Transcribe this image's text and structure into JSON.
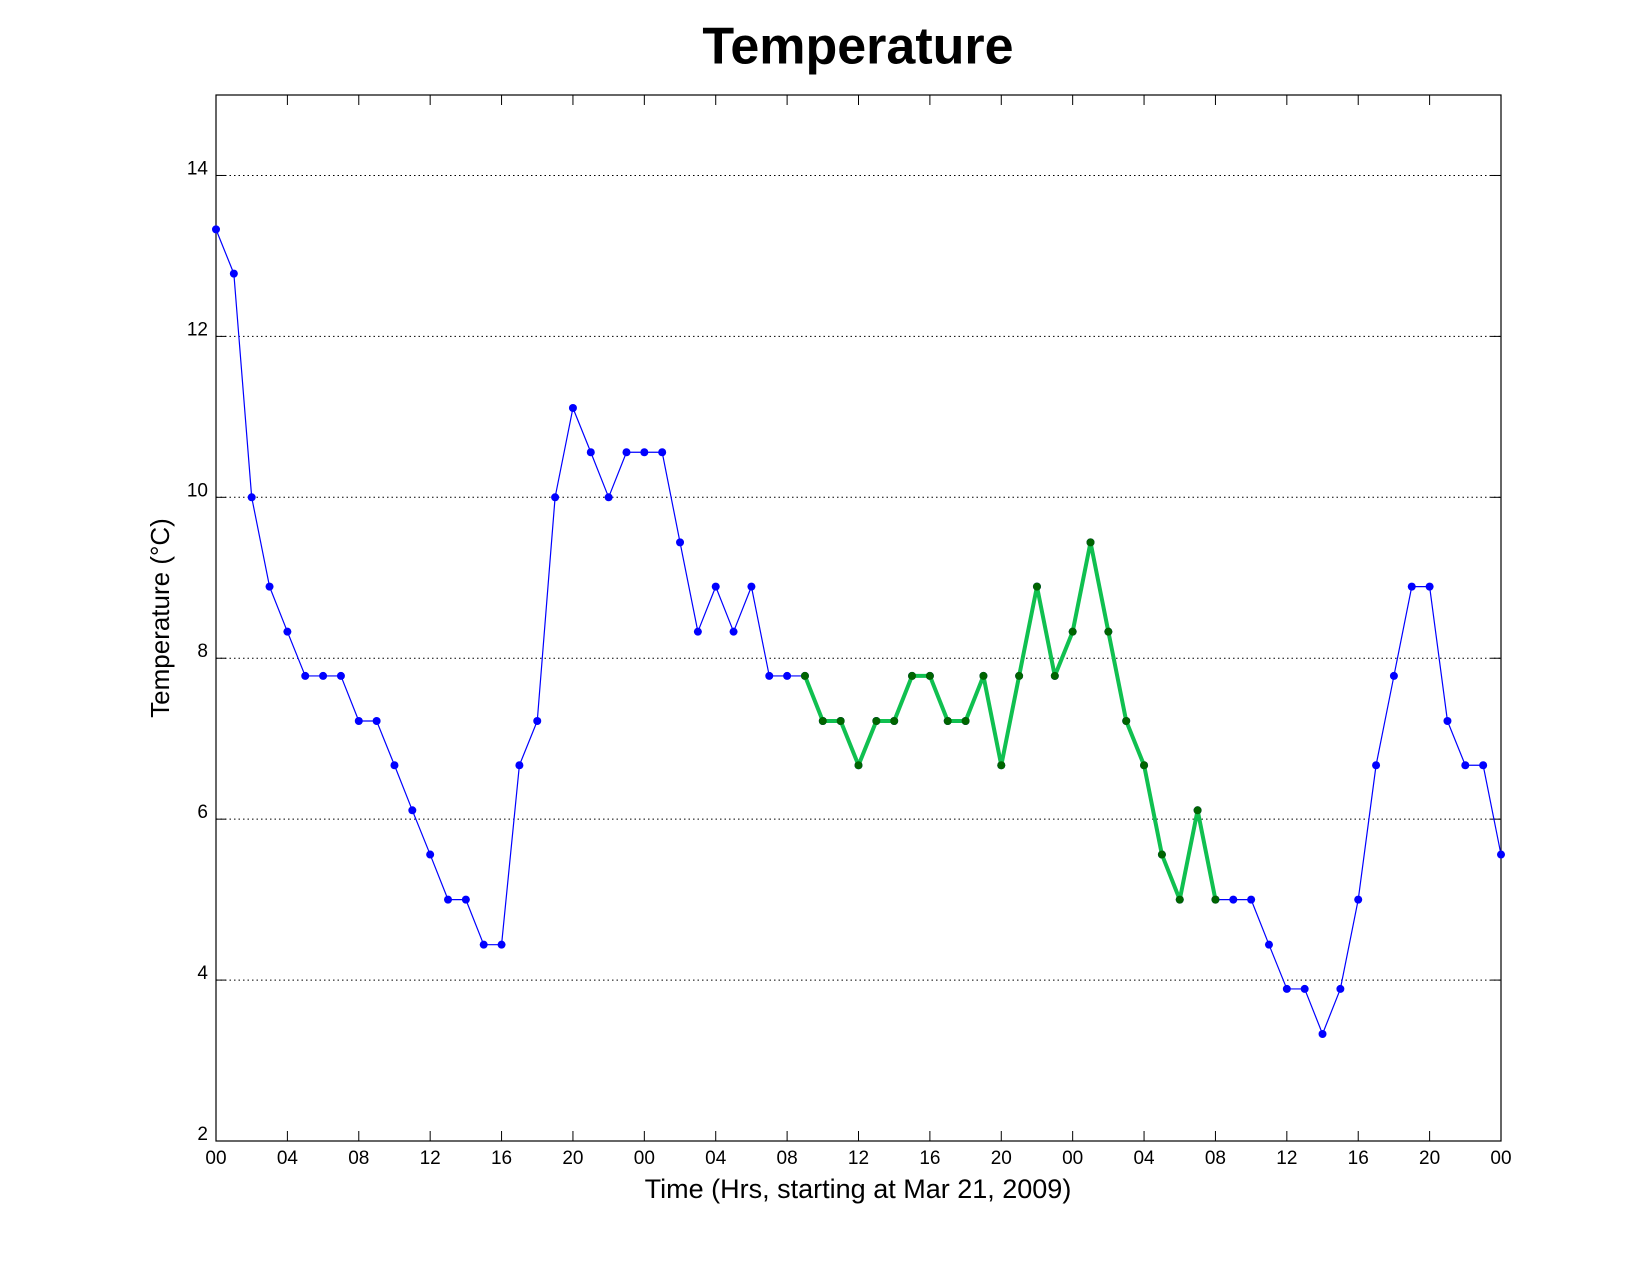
{
  "chart_data": {
    "type": "line",
    "title": "Temperature",
    "x_label": "Time (Hrs, starting at Mar 21, 2009)",
    "y_label": "Temperature (°C)",
    "x": [
      0,
      1,
      2,
      3,
      4,
      5,
      6,
      7,
      8,
      9,
      10,
      11,
      12,
      13,
      14,
      15,
      16,
      17,
      18,
      19,
      20,
      21,
      22,
      23,
      24,
      25,
      26,
      27,
      28,
      29,
      30,
      31,
      32,
      33,
      34,
      35,
      36,
      37,
      38,
      39,
      40,
      41,
      42,
      43,
      44,
      45,
      46,
      47,
      48,
      49,
      50,
      51,
      52,
      53,
      54,
      55,
      56,
      57,
      58,
      59,
      60,
      61,
      62,
      63,
      64,
      65,
      66,
      67,
      68,
      69,
      70,
      71,
      72
    ],
    "series": [
      {
        "color": "#0000ff",
        "marker_color": "#0000ff",
        "line_width": 1.2,
        "values": [
          13.33,
          12.78,
          10,
          8.89,
          8.33,
          7.78,
          7.78,
          7.78,
          7.22,
          7.22,
          6.67,
          6.11,
          5.56,
          5,
          5,
          4.44,
          4.44,
          6.67,
          7.22,
          10,
          11.11,
          10.56,
          10,
          10.56,
          10.56,
          10.56,
          9.44,
          8.33,
          8.89,
          8.33,
          8.89,
          7.78,
          7.78,
          7.78,
          7.22,
          7.22,
          6.67,
          7.22,
          7.22,
          7.78,
          7.78,
          7.22,
          7.22,
          7.78,
          6.67,
          7.78,
          8.89,
          7.78,
          8.33,
          9.44,
          8.33,
          7.22,
          6.67,
          5.56,
          5,
          6.11,
          5,
          5,
          5,
          4.44,
          3.89,
          3.89,
          3.33,
          3.89,
          5,
          6.67,
          7.78,
          8.89,
          8.89,
          7.22,
          6.67,
          6.67,
          5.56
        ]
      },
      {
        "color": "#10c050",
        "marker_color": "#006400",
        "line_width": 4,
        "values": [
          null,
          null,
          null,
          null,
          null,
          null,
          null,
          null,
          null,
          null,
          null,
          null,
          null,
          null,
          null,
          null,
          null,
          null,
          null,
          null,
          null,
          null,
          null,
          null,
          null,
          null,
          null,
          null,
          null,
          null,
          null,
          null,
          null,
          7.78,
          7.22,
          7.22,
          6.67,
          7.22,
          7.22,
          7.78,
          7.78,
          7.22,
          7.22,
          7.78,
          6.67,
          7.78,
          8.89,
          7.78,
          8.33,
          9.44,
          8.33,
          7.22,
          6.67,
          5.56,
          5,
          6.11,
          5,
          null,
          null,
          null,
          null,
          null,
          null,
          null,
          null,
          null,
          null,
          null,
          null,
          null,
          null,
          null,
          null
        ]
      }
    ],
    "xlim": [
      0,
      72
    ],
    "xticks": [
      {
        "value": 0,
        "label": "00"
      },
      {
        "value": 4,
        "label": "04"
      },
      {
        "value": 8,
        "label": "08"
      },
      {
        "value": 12,
        "label": "12"
      },
      {
        "value": 16,
        "label": "16"
      },
      {
        "value": 20,
        "label": "20"
      },
      {
        "value": 24,
        "label": "00"
      },
      {
        "value": 28,
        "label": "04"
      },
      {
        "value": 32,
        "label": "08"
      },
      {
        "value": 36,
        "label": "12"
      },
      {
        "value": 40,
        "label": "16"
      },
      {
        "value": 44,
        "label": "20"
      },
      {
        "value": 48,
        "label": "00"
      },
      {
        "value": 52,
        "label": "04"
      },
      {
        "value": 56,
        "label": "08"
      },
      {
        "value": 60,
        "label": "12"
      },
      {
        "value": 64,
        "label": "16"
      },
      {
        "value": 68,
        "label": "20"
      },
      {
        "value": 72,
        "label": "00"
      }
    ],
    "ylim": [
      2,
      15
    ],
    "yticks": [
      2,
      4,
      6,
      8,
      10,
      12,
      14
    ],
    "grid": "y"
  }
}
